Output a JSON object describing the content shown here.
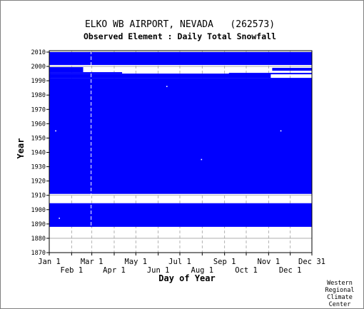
{
  "chart_data": {
    "type": "heatmap",
    "title": "ELKO WB AIRPORT, NEVADA   (262573)",
    "subtitle": "Observed Element : Daily Total Snowfall",
    "xlabel": "Day of Year",
    "ylabel": "Year",
    "xlim": [
      1,
      365
    ],
    "ylim": [
      1870,
      2011
    ],
    "x_ticks_top_row": [
      {
        "label": "Jan 1",
        "day": 1
      },
      {
        "label": "Mar 1",
        "day": 60
      },
      {
        "label": "May 1",
        "day": 121
      },
      {
        "label": "Jul 1",
        "day": 182
      },
      {
        "label": "Sep 1",
        "day": 244
      },
      {
        "label": "Nov 1",
        "day": 305
      },
      {
        "label": "Dec 31",
        "day": 365
      }
    ],
    "x_ticks_bottom_row": [
      {
        "label": "Feb 1",
        "day": 32
      },
      {
        "label": "Apr 1",
        "day": 91
      },
      {
        "label": "Jun 1",
        "day": 152
      },
      {
        "label": "Aug 1",
        "day": 213
      },
      {
        "label": "Oct 1",
        "day": 274
      },
      {
        "label": "Dec 1",
        "day": 335
      }
    ],
    "y_ticks": [
      "1870",
      "1880",
      "1890",
      "1900",
      "1910",
      "1920",
      "1930",
      "1940",
      "1950",
      "1960",
      "1970",
      "1980",
      "1990",
      "2000",
      "2010"
    ],
    "y_tick_values": [
      1870,
      1880,
      1890,
      1900,
      1910,
      1920,
      1930,
      1940,
      1950,
      1960,
      1970,
      1980,
      1990,
      2000,
      2010
    ],
    "series": [
      {
        "values_meaning": "observed day-of-year coverage (blue = data present)"
      }
    ],
    "observed_year_ranges": [
      {
        "from": 1888,
        "to": 1904.5
      },
      {
        "from": 1911,
        "to": 1992
      },
      {
        "from": 2001,
        "to": 2010
      }
    ],
    "partial_coverage": [
      {
        "year_from": 1995,
        "year_to": 1996,
        "day_from": 1,
        "day_to": 102
      },
      {
        "year_from": 1996,
        "year_to": 1999.5,
        "day_from": 1,
        "day_to": 48
      },
      {
        "year_from": 1992,
        "year_to": 1995,
        "day_from": 1,
        "day_to": 308
      },
      {
        "year_from": 1994.5,
        "year_to": 1995.5,
        "day_from": 250,
        "day_to": 365
      },
      {
        "year_from": 1997,
        "year_to": 1999,
        "day_from": 310,
        "day_to": 365
      }
    ],
    "missing_day_dots": [
      {
        "year": 1986,
        "day": 164
      },
      {
        "year": 1955,
        "day": 10
      },
      {
        "year": 1955,
        "day": 322
      },
      {
        "year": 1935,
        "day": 212
      },
      {
        "year": 1894,
        "day": 15
      }
    ],
    "dashed_marker_day": 59,
    "fill_color": "#0000ff",
    "gridline_color": "#a0a0a0",
    "grid": true,
    "legend": "none"
  },
  "footer": {
    "line1": "Western",
    "line2": "Regional",
    "line3": "Climate",
    "line4": "Center"
  }
}
